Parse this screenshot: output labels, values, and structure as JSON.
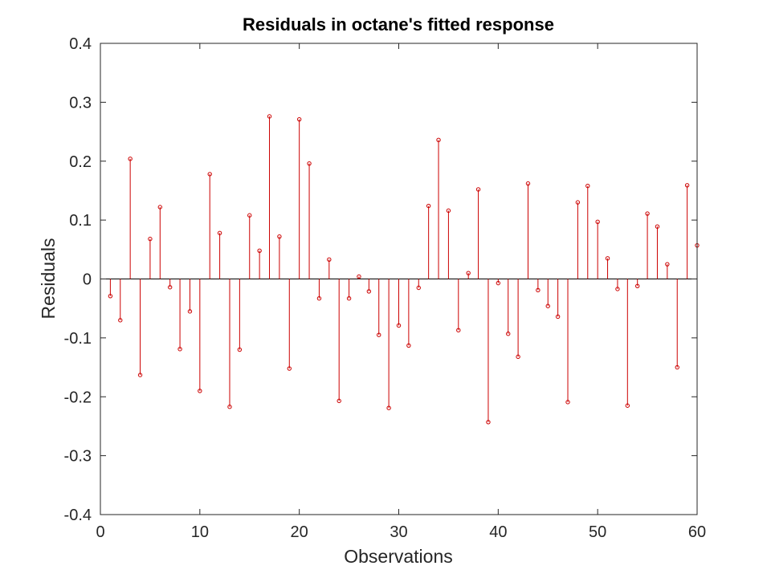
{
  "chart_data": {
    "type": "stem",
    "title": "Residuals in octane's fitted response",
    "xlabel": "Observations",
    "ylabel": "Residuals",
    "xlim": [
      0,
      60
    ],
    "ylim": [
      -0.4,
      0.4
    ],
    "xticks": [
      "0",
      "10",
      "20",
      "30",
      "40",
      "50",
      "60"
    ],
    "yticks": [
      "-0.4",
      "-0.3",
      "-0.2",
      "-0.1",
      "0",
      "0.1",
      "0.2",
      "0.3",
      "0.4"
    ],
    "grid": false,
    "series": [
      {
        "color": "#cc0000",
        "x": [
          1,
          2,
          3,
          4,
          5,
          6,
          7,
          8,
          9,
          10,
          11,
          12,
          13,
          14,
          15,
          16,
          17,
          18,
          19,
          20,
          21,
          22,
          23,
          24,
          25,
          26,
          27,
          28,
          29,
          30,
          31,
          32,
          33,
          34,
          35,
          36,
          37,
          38,
          39,
          40,
          41,
          42,
          43,
          44,
          45,
          46,
          47,
          48,
          49,
          50,
          51,
          52,
          53,
          54,
          55,
          56,
          57,
          58,
          59,
          60
        ],
        "y": [
          -0.029,
          -0.07,
          0.204,
          -0.163,
          0.068,
          0.122,
          -0.014,
          -0.119,
          -0.055,
          -0.19,
          0.178,
          0.078,
          -0.217,
          -0.12,
          0.108,
          0.048,
          0.276,
          0.072,
          -0.152,
          0.271,
          0.196,
          -0.033,
          0.033,
          -0.207,
          -0.033,
          0.004,
          -0.021,
          -0.095,
          -0.219,
          -0.079,
          -0.113,
          -0.015,
          0.124,
          0.236,
          0.116,
          -0.087,
          0.01,
          0.152,
          -0.243,
          -0.007,
          -0.093,
          -0.132,
          0.162,
          -0.019,
          -0.046,
          -0.064,
          -0.209,
          0.13,
          0.158,
          0.097,
          0.035,
          -0.017,
          -0.215,
          -0.012,
          0.111,
          0.089,
          0.025,
          -0.15,
          0.159,
          0.057
        ]
      }
    ]
  }
}
